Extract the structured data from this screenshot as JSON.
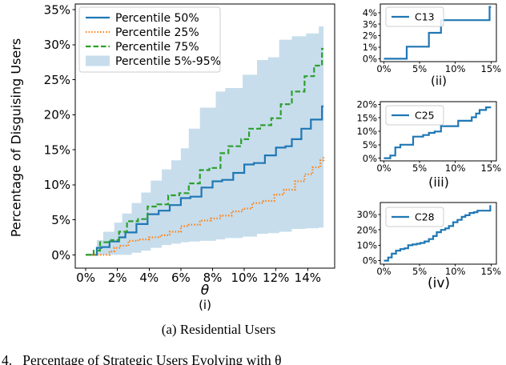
{
  "figure": {
    "caption": "(a) Residential Users",
    "bottom_text": "4.   Percentage of Strategic Users Evolving with θ"
  },
  "colors": {
    "blue": "#1f77b4",
    "orange": "#ff7f0e",
    "green": "#2ca02c",
    "band_fill": "rgba(31,119,180,0.25)",
    "axis": "#000000",
    "legend_border": "#cccccc"
  },
  "chart_data": [
    {
      "id": "main",
      "type": "line",
      "title": "",
      "xlabel": "θ",
      "sublabel": "(i)",
      "ylabel": "Percentage of Disguising Users",
      "xlim": [
        -0.66,
        15.7
      ],
      "ylim": [
        -1.9,
        35.8
      ],
      "xticks": [
        0,
        2,
        4,
        6,
        8,
        10,
        12,
        14
      ],
      "yticks": [
        0,
        5,
        10,
        15,
        20,
        25,
        30,
        35
      ],
      "tick_suffix": "%",
      "grid": false,
      "legend_position": "top-left",
      "band": {
        "name": "Percentile 5%-95%",
        "color": "rgba(31,119,180,0.25)",
        "x": [
          0,
          0.7,
          1.1,
          1.8,
          2.3,
          2.9,
          3.5,
          4.1,
          4.8,
          5.4,
          6.0,
          6.5,
          7.2,
          8.2,
          8.8,
          9.9,
          10.8,
          11.5,
          12.2,
          13.0,
          13.9,
          14.7,
          15
        ],
        "upper": [
          0,
          2.1,
          3.3,
          4.6,
          5.9,
          7.4,
          8.9,
          10.6,
          12.2,
          13.5,
          15.2,
          18.0,
          21.0,
          23.3,
          23.8,
          25.7,
          27.8,
          28.2,
          30.7,
          31.2,
          31.6,
          32.6,
          34.6
        ],
        "lower": [
          0,
          0,
          0,
          0,
          0,
          0.3,
          0.6,
          1.0,
          1.4,
          1.6,
          1.8,
          1.9,
          2.0,
          2.2,
          2.4,
          2.6,
          3.0,
          3.1,
          3.3,
          3.7,
          3.8,
          3.9,
          4.0
        ]
      },
      "series": [
        {
          "name": "Percentile 50%",
          "color": "#1f77b4",
          "dash": "solid",
          "x": [
            0,
            0.7,
            1.0,
            1.5,
            2.1,
            2.5,
            3.2,
            3.9,
            4.6,
            5.3,
            6.0,
            6.6,
            7.3,
            8.0,
            8.6,
            9.3,
            10.0,
            10.6,
            11.3,
            12.0,
            12.6,
            13.0,
            13.6,
            14.2,
            14.9,
            15
          ],
          "y": [
            0,
            1.0,
            1.1,
            1.9,
            2.5,
            3.2,
            4.4,
            5.8,
            6.3,
            7.1,
            8.1,
            8.3,
            9.6,
            10.5,
            10.7,
            11.7,
            12.9,
            13.1,
            14.2,
            15.3,
            15.5,
            16.5,
            18.0,
            19.3,
            21.2,
            21.2
          ]
        },
        {
          "name": "Percentile 25%",
          "color": "#ff7f0e",
          "dash": "dotted",
          "x": [
            0,
            1.5,
            1.8,
            2.2,
            2.7,
            3.3,
            4.0,
            4.7,
            5.3,
            6.0,
            6.5,
            7.2,
            7.9,
            8.5,
            9.2,
            9.9,
            10.5,
            11.2,
            11.9,
            12.5,
            13.2,
            13.8,
            14.3,
            14.8,
            15
          ],
          "y": [
            0,
            0.5,
            1.0,
            1.3,
            2.0,
            2.2,
            2.5,
            2.8,
            3.3,
            4.1,
            4.3,
            4.9,
            5.2,
            5.6,
            6.2,
            6.6,
            7.4,
            7.7,
            8.6,
            9.3,
            10.5,
            11.5,
            12.5,
            13.5,
            14.1
          ]
        },
        {
          "name": "Percentile 75%",
          "color": "#2ca02c",
          "dash": "dashed",
          "x": [
            0,
            0.5,
            0.9,
            1.6,
            2.1,
            2.6,
            3.3,
            3.9,
            4.5,
            5.2,
            5.9,
            6.5,
            7.2,
            7.8,
            8.5,
            9.0,
            9.8,
            10.3,
            11.0,
            11.7,
            12.3,
            13.0,
            13.8,
            14.4,
            14.9,
            15
          ],
          "y": [
            0,
            0.6,
            1.8,
            2.1,
            3.3,
            4.8,
            5.1,
            6.9,
            7.2,
            8.5,
            8.8,
            10.2,
            12.1,
            12.4,
            14.5,
            15.5,
            16.5,
            18.0,
            18.5,
            19.5,
            21.5,
            23.3,
            25.5,
            27.0,
            29.4,
            29.4
          ]
        }
      ]
    },
    {
      "id": "c13",
      "type": "line",
      "sublabel": "(ii)",
      "xlim": [
        -0.5,
        15.75
      ],
      "ylim": [
        -0.25,
        4.75
      ],
      "xticks": [
        0,
        5,
        10,
        15
      ],
      "yticks": [
        0,
        1,
        2,
        3,
        4
      ],
      "tick_suffix": "%",
      "series": [
        {
          "name": "C13",
          "color": "#1f77b4",
          "dash": "solid",
          "x": [
            0,
            3.2,
            6.3,
            8.0,
            14.8,
            15
          ],
          "y": [
            0,
            1.05,
            2.25,
            3.35,
            4.5,
            4.5
          ]
        }
      ]
    },
    {
      "id": "c25",
      "type": "line",
      "sublabel": "(iii)",
      "xlim": [
        -0.5,
        15.75
      ],
      "ylim": [
        -1.0,
        21.0
      ],
      "xticks": [
        0,
        5,
        10,
        15
      ],
      "yticks": [
        0,
        5,
        10,
        15,
        20
      ],
      "tick_suffix": "%",
      "series": [
        {
          "name": "C25",
          "color": "#1f77b4",
          "dash": "solid",
          "x": [
            0,
            0.9,
            1.6,
            2.3,
            4.1,
            5.5,
            6.3,
            7.1,
            8.0,
            10.4,
            12.3,
            12.9,
            13.4,
            14.3,
            15
          ],
          "y": [
            0,
            1.0,
            4.0,
            5.0,
            8.0,
            8.6,
            9.4,
            9.9,
            11.9,
            13.9,
            15.2,
            16.6,
            17.9,
            18.9,
            18.9
          ]
        }
      ]
    },
    {
      "id": "c28",
      "type": "line",
      "sublabel": "(iv)",
      "xlim": [
        -0.5,
        15.75
      ],
      "ylim": [
        -2.3,
        37.8
      ],
      "xticks": [
        0,
        5,
        10,
        15
      ],
      "yticks": [
        0,
        10,
        20,
        30
      ],
      "tick_suffix": "%",
      "series": [
        {
          "name": "C28",
          "color": "#1f77b4",
          "dash": "solid",
          "x": [
            0,
            0.6,
            1.1,
            1.7,
            2.3,
            2.9,
            3.4,
            4.0,
            4.6,
            5.1,
            5.7,
            6.3,
            6.9,
            7.4,
            8.0,
            8.6,
            9.1,
            9.7,
            10.3,
            10.9,
            11.4,
            12.0,
            12.6,
            13.1,
            14.9,
            15
          ],
          "y": [
            0,
            2.0,
            4.5,
            6.5,
            7.5,
            8.0,
            10.0,
            10.5,
            11.0,
            11.5,
            12.5,
            14.0,
            16.0,
            18.5,
            20.0,
            21.0,
            22.5,
            25.0,
            26.5,
            28.5,
            29.5,
            31.0,
            31.5,
            32.5,
            35.5,
            35.5
          ]
        }
      ]
    }
  ]
}
